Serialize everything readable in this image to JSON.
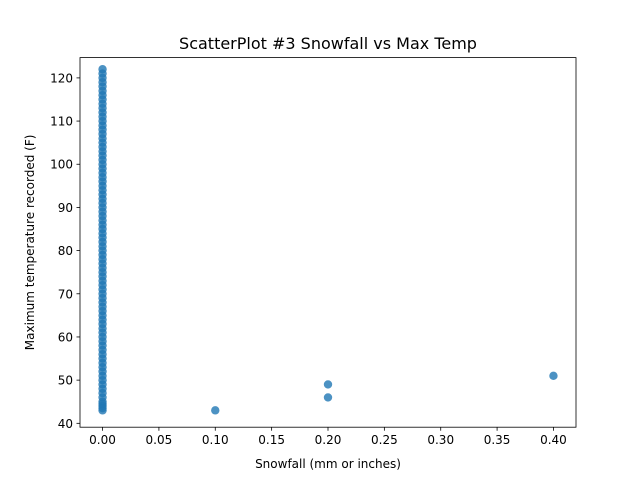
{
  "chart_data": {
    "type": "scatter",
    "title": "ScatterPlot #3 Snowfall vs Max Temp",
    "xlabel": "Snowfall (mm or inches)",
    "ylabel": "Maximum temperature recorded (F)",
    "xlim": [
      -0.02,
      0.42
    ],
    "ylim": [
      39.1,
      124.7
    ],
    "xticks": [
      0.0,
      0.05,
      0.1,
      0.15,
      0.2,
      0.25,
      0.3,
      0.35,
      0.4
    ],
    "xtick_labels": [
      "0.00",
      "0.05",
      "0.10",
      "0.15",
      "0.20",
      "0.25",
      "0.30",
      "0.35",
      "0.40"
    ],
    "yticks": [
      40,
      50,
      60,
      70,
      80,
      90,
      100,
      110,
      120
    ],
    "ytick_labels": [
      "40",
      "50",
      "60",
      "70",
      "80",
      "90",
      "100",
      "110",
      "120"
    ],
    "grid": false,
    "marker_color": "#1f77b4",
    "marker_alpha": 0.8,
    "series": [
      {
        "name": "Snowfall vs Max Temp",
        "x": [
          0,
          0,
          0,
          0,
          0,
          0,
          0,
          0,
          0,
          0,
          0,
          0,
          0,
          0,
          0,
          0,
          0,
          0,
          0,
          0,
          0,
          0,
          0,
          0,
          0,
          0,
          0,
          0,
          0,
          0,
          0,
          0,
          0,
          0,
          0,
          0,
          0,
          0,
          0,
          0,
          0,
          0,
          0,
          0,
          0,
          0,
          0,
          0,
          0,
          0,
          0,
          0,
          0,
          0,
          0,
          0,
          0,
          0,
          0,
          0,
          0,
          0,
          0,
          0,
          0,
          0,
          0,
          0,
          0,
          0,
          0,
          0,
          0,
          0,
          0,
          0,
          0,
          0,
          0,
          0,
          0,
          0,
          0.1,
          0.2,
          0.2,
          0.4
        ],
        "y": [
          43,
          44,
          45,
          46,
          47,
          48,
          49,
          50,
          51,
          52,
          53,
          54,
          55,
          56,
          57,
          58,
          59,
          60,
          61,
          62,
          63,
          64,
          65,
          66,
          67,
          68,
          69,
          70,
          71,
          72,
          73,
          74,
          75,
          76,
          77,
          78,
          79,
          80,
          81,
          82,
          83,
          84,
          85,
          86,
          87,
          88,
          89,
          90,
          91,
          92,
          93,
          94,
          95,
          96,
          97,
          98,
          99,
          100,
          101,
          102,
          103,
          104,
          105,
          106,
          107,
          108,
          109,
          110,
          111,
          112,
          113,
          114,
          115,
          116,
          117,
          118,
          119,
          120,
          121,
          122,
          44.5,
          43.5,
          43,
          46,
          49,
          51
        ]
      }
    ]
  }
}
